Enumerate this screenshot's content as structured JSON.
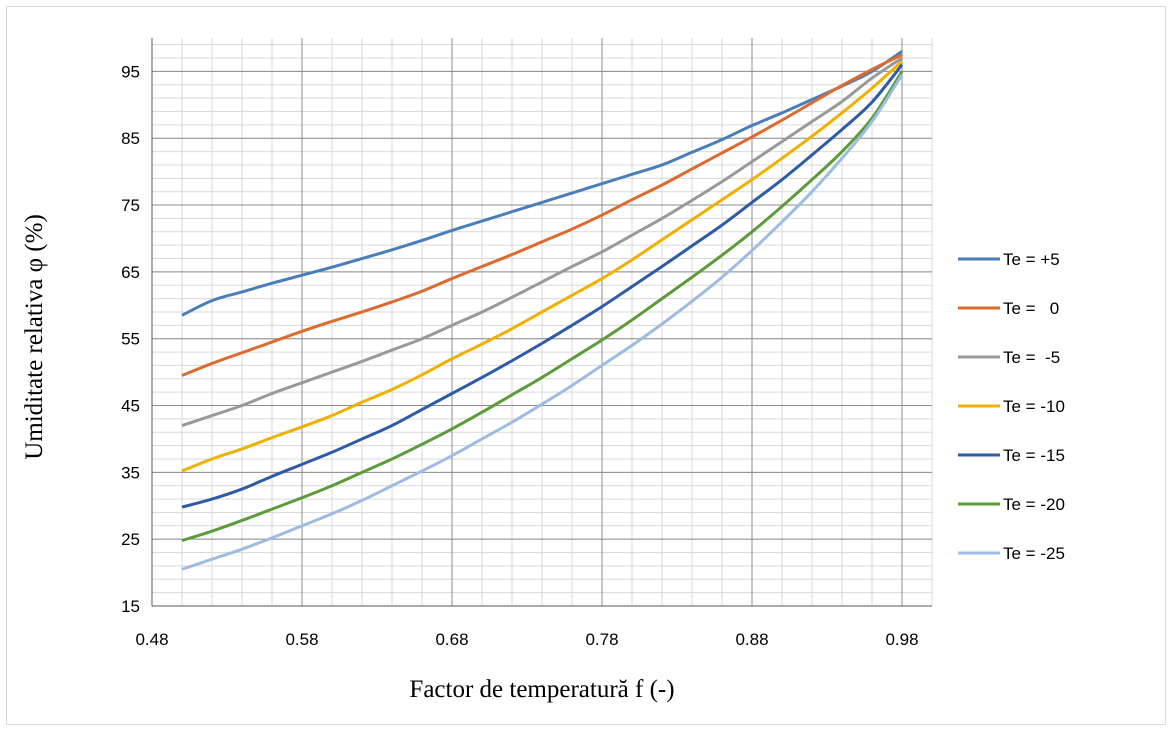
{
  "chart_data": {
    "type": "line",
    "title": "",
    "xlabel": "Factor de temperatură f (-)",
    "ylabel": "Umiditate relativa φ (%)",
    "xlim": [
      0.48,
      1.0
    ],
    "ylim": [
      15,
      100
    ],
    "x_ticks": [
      "0.48",
      "0.58",
      "0.68",
      "0.78",
      "0.88",
      "0.98"
    ],
    "y_ticks": [
      "15",
      "25",
      "35",
      "45",
      "55",
      "65",
      "75",
      "85",
      "95"
    ],
    "grid": "on",
    "legend_position": "right",
    "x": [
      0.5,
      0.52,
      0.54,
      0.56,
      0.58,
      0.6,
      0.62,
      0.64,
      0.66,
      0.68,
      0.7,
      0.72,
      0.74,
      0.76,
      0.78,
      0.8,
      0.82,
      0.84,
      0.86,
      0.88,
      0.9,
      0.92,
      0.94,
      0.96,
      0.98
    ],
    "series": [
      {
        "name": "Te = +5",
        "color": "#4a7ebb",
        "values": [
          58.5,
          60.7,
          62.0,
          63.3,
          64.5,
          65.7,
          67.0,
          68.3,
          69.7,
          71.2,
          72.6,
          74.0,
          75.4,
          76.8,
          78.2,
          79.6,
          81.0,
          82.9,
          84.8,
          86.9,
          88.8,
          90.8,
          92.8,
          95.0,
          98.0
        ]
      },
      {
        "name": "Te =   0",
        "color": "#dd6b2f",
        "values": [
          49.5,
          51.3,
          52.9,
          54.5,
          56.1,
          57.6,
          59.0,
          60.5,
          62.1,
          64.0,
          65.8,
          67.6,
          69.5,
          71.4,
          73.5,
          75.8,
          78.0,
          80.4,
          82.8,
          85.2,
          87.7,
          90.3,
          92.9,
          95.3,
          97.5
        ]
      },
      {
        "name": "Te =  -5",
        "color": "#999999",
        "values": [
          42.0,
          43.5,
          45.0,
          46.8,
          48.4,
          50.0,
          51.6,
          53.3,
          55.0,
          57.0,
          59.0,
          61.2,
          63.5,
          65.8,
          68.0,
          70.5,
          73.0,
          75.7,
          78.5,
          81.5,
          84.5,
          87.5,
          90.5,
          94.0,
          97.0
        ]
      },
      {
        "name": "Te = -10",
        "color": "#f0b000",
        "values": [
          35.2,
          37.0,
          38.5,
          40.2,
          41.8,
          43.5,
          45.5,
          47.4,
          49.6,
          52.0,
          54.2,
          56.5,
          59.0,
          61.5,
          64.0,
          66.8,
          69.8,
          72.8,
          75.8,
          78.8,
          82.0,
          85.3,
          88.8,
          92.5,
          96.5
        ]
      },
      {
        "name": "Te = -15",
        "color": "#2e5aa8",
        "values": [
          29.8,
          31.0,
          32.5,
          34.4,
          36.2,
          38.0,
          40.0,
          42.0,
          44.4,
          46.8,
          49.2,
          51.7,
          54.3,
          57.0,
          59.8,
          62.8,
          65.8,
          68.9,
          72.0,
          75.4,
          78.8,
          82.5,
          86.3,
          90.4,
          96.0
        ]
      },
      {
        "name": "Te = -20",
        "color": "#5c9b3a",
        "values": [
          24.8,
          26.2,
          27.8,
          29.5,
          31.2,
          33.0,
          35.0,
          37.0,
          39.2,
          41.5,
          44.0,
          46.6,
          49.2,
          52.0,
          54.8,
          57.8,
          61.0,
          64.2,
          67.5,
          71.0,
          74.8,
          78.8,
          83.0,
          88.0,
          95.0
        ]
      },
      {
        "name": "Te = -25",
        "color": "#9dbce0",
        "values": [
          20.5,
          22.0,
          23.5,
          25.2,
          27.0,
          28.8,
          30.8,
          33.0,
          35.2,
          37.5,
          40.0,
          42.5,
          45.2,
          48.0,
          51.0,
          54.0,
          57.2,
          60.6,
          64.2,
          68.2,
          72.5,
          77.0,
          82.0,
          87.5,
          94.5
        ]
      }
    ]
  }
}
